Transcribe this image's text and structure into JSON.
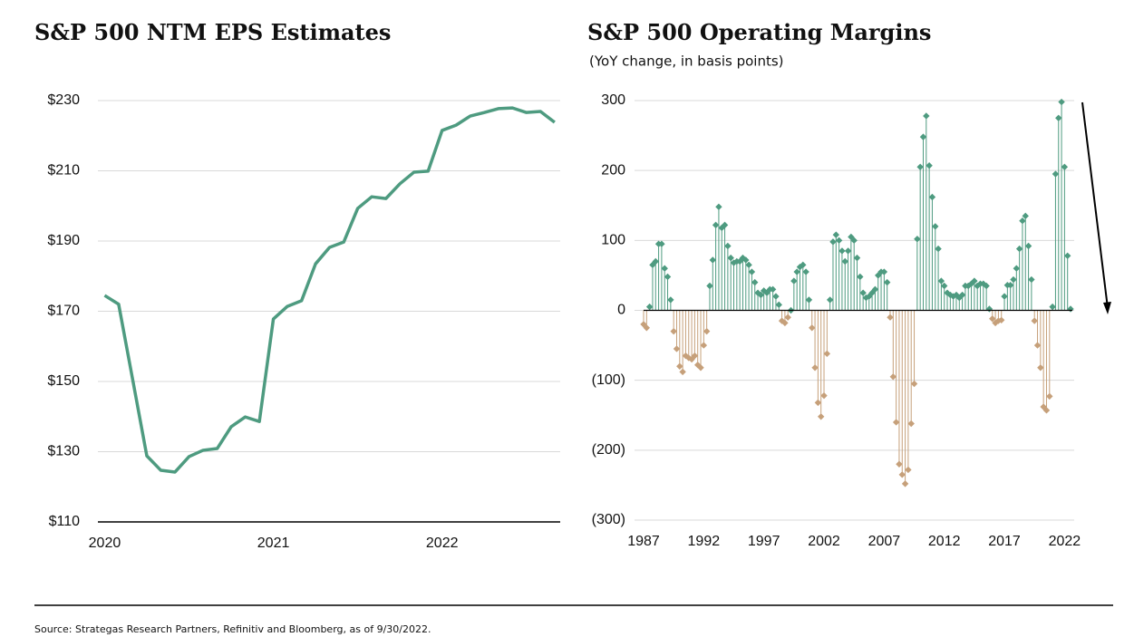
{
  "chart_data": [
    {
      "type": "line",
      "title": "S&P 500 NTM EPS Estimates",
      "color": "#4e9b80",
      "x": [
        2020,
        2020.083,
        2020.167,
        2020.25,
        2020.333,
        2020.417,
        2020.5,
        2020.583,
        2020.667,
        2020.75,
        2020.833,
        2020.917,
        2021,
        2021.083,
        2021.167,
        2021.25,
        2021.333,
        2021.417,
        2021.5,
        2021.583,
        2021.667,
        2021.75,
        2021.833,
        2021.917,
        2022,
        2022.083,
        2022.167,
        2022.25,
        2022.333,
        2022.417,
        2022.5,
        2022.583,
        2022.667
      ],
      "values": [
        174.5,
        172,
        150.3,
        128.8,
        124.7,
        124.2,
        128.6,
        130.4,
        130.9,
        137.1,
        139.9,
        138.6,
        167.8,
        171.4,
        173,
        183.5,
        188.2,
        189.7,
        199.3,
        202.6,
        202.1,
        206.3,
        209.6,
        209.9,
        221.5,
        223,
        225.6,
        226.6,
        227.7,
        227.9,
        226.6,
        226.9,
        223.8
      ],
      "xlim": [
        2019.96,
        2022.7
      ],
      "xticks": [
        2020,
        2021,
        2022
      ],
      "ylim": [
        110,
        230
      ],
      "yticks": [
        {
          "value": 110,
          "label": "$110"
        },
        {
          "value": 130,
          "label": "$130"
        },
        {
          "value": 150,
          "label": "$150"
        },
        {
          "value": 170,
          "label": "$170"
        },
        {
          "value": 190,
          "label": "$190"
        },
        {
          "value": 210,
          "label": "$210"
        },
        {
          "value": 230,
          "label": "$230"
        }
      ],
      "grid": true
    },
    {
      "type": "stem",
      "title": "S&P 500 Operating Margins",
      "subtitle": "(YoY change, in basis points)",
      "color": "#4e9b80",
      "negative_color": "#c6a07a",
      "x": [
        1987,
        1987.25,
        1987.5,
        1987.75,
        1988,
        1988.25,
        1988.5,
        1988.75,
        1989,
        1989.25,
        1989.5,
        1989.75,
        1990,
        1990.25,
        1990.5,
        1990.75,
        1991,
        1991.25,
        1991.5,
        1991.75,
        1992,
        1992.25,
        1992.5,
        1992.75,
        1993,
        1993.25,
        1993.5,
        1993.75,
        1994,
        1994.25,
        1994.5,
        1994.75,
        1995,
        1995.25,
        1995.5,
        1995.75,
        1996,
        1996.25,
        1996.5,
        1996.75,
        1997,
        1997.25,
        1997.5,
        1997.75,
        1998,
        1998.25,
        1998.5,
        1998.75,
        1999,
        1999.25,
        1999.5,
        1999.75,
        2000,
        2000.25,
        2000.5,
        2000.75,
        2001,
        2001.25,
        2001.5,
        2001.75,
        2002,
        2002.25,
        2002.5,
        2002.75,
        2003,
        2003.25,
        2003.5,
        2003.75,
        2004,
        2004.25,
        2004.5,
        2004.75,
        2005,
        2005.25,
        2005.5,
        2005.75,
        2006,
        2006.25,
        2006.5,
        2006.75,
        2007,
        2007.25,
        2007.5,
        2007.75,
        2008,
        2008.25,
        2008.5,
        2008.75,
        2009,
        2009.25,
        2009.5,
        2009.75,
        2010,
        2010.25,
        2010.5,
        2010.75,
        2011,
        2011.25,
        2011.5,
        2011.75,
        2012,
        2012.25,
        2012.5,
        2012.75,
        2013,
        2013.25,
        2013.5,
        2013.75,
        2014,
        2014.25,
        2014.5,
        2014.75,
        2015,
        2015.25,
        2015.5,
        2015.75,
        2016,
        2016.25,
        2016.5,
        2016.75,
        2017,
        2017.25,
        2017.5,
        2017.75,
        2018,
        2018.25,
        2018.5,
        2018.75,
        2019,
        2019.25,
        2019.5,
        2019.75,
        2020,
        2020.25,
        2020.5,
        2020.75,
        2021,
        2021.25,
        2021.5,
        2021.75,
        2022,
        2022.25,
        2022.5
      ],
      "values": [
        -20,
        -25,
        5,
        65,
        70,
        95,
        95,
        60,
        48,
        15,
        -30,
        -55,
        -80,
        -88,
        -65,
        -68,
        -70,
        -65,
        -78,
        -82,
        -50,
        -30,
        35,
        72,
        122,
        148,
        118,
        122,
        92,
        75,
        68,
        70,
        70,
        75,
        72,
        65,
        55,
        40,
        25,
        22,
        28,
        25,
        30,
        30,
        20,
        8,
        -15,
        -18,
        -10,
        0,
        42,
        55,
        62,
        65,
        55,
        15,
        -25,
        -82,
        -132,
        -152,
        -122,
        -62,
        15,
        98,
        108,
        100,
        85,
        70,
        85,
        105,
        100,
        75,
        48,
        25,
        18,
        20,
        25,
        30,
        50,
        55,
        55,
        40,
        -10,
        -95,
        -160,
        -220,
        -235,
        -248,
        -228,
        -162,
        -105,
        102,
        205,
        248,
        278,
        207,
        162,
        120,
        88,
        42,
        35,
        25,
        22,
        20,
        22,
        18,
        22,
        35,
        35,
        38,
        42,
        35,
        38,
        38,
        35,
        2,
        -12,
        -18,
        -15,
        -14,
        20,
        36,
        36,
        44,
        60,
        88,
        128,
        135,
        92,
        44,
        -15,
        -50,
        -82,
        -138,
        -143,
        -123,
        5,
        195,
        275,
        298,
        205,
        78,
        2
      ],
      "xlim": [
        1987,
        2022.8
      ],
      "xticks": [
        1987,
        1992,
        1997,
        2002,
        2007,
        2012,
        2017,
        2022
      ],
      "ylim": [
        -300,
        300
      ],
      "yticks": [
        {
          "value": -300,
          "label": "(300)"
        },
        {
          "value": -200,
          "label": "(200)"
        },
        {
          "value": -100,
          "label": "(100)"
        },
        0,
        100,
        200,
        300
      ],
      "grid": true
    }
  ],
  "source": "Source: Strategas Research Partners, Refinitiv and Bloomberg, as of 9/30/2022."
}
